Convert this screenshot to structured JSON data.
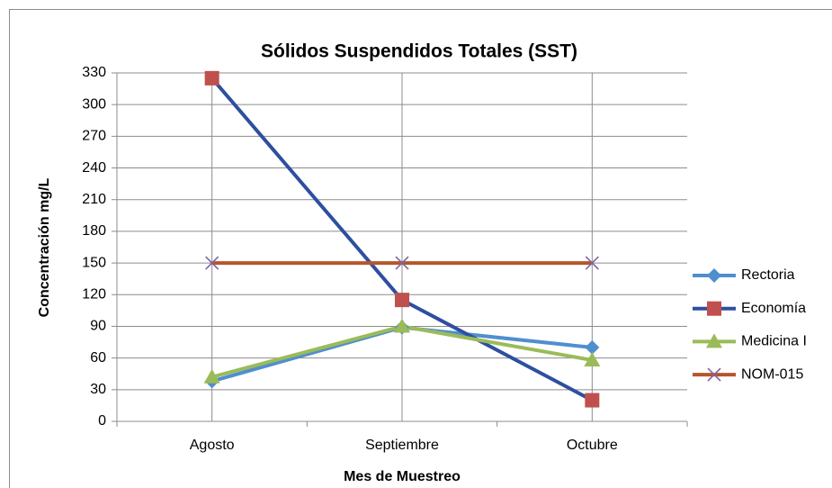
{
  "chart_data": {
    "type": "line",
    "title": "Sólidos Suspendidos Totales (SST)",
    "x_label": "Mes de Muestreo",
    "y_label": "Concentración mg/L",
    "categories": [
      "Agosto",
      "Septiembre",
      "Octubre"
    ],
    "series": [
      {
        "name": "Rectoria",
        "color": "#4f8fcf",
        "marker_color": "#4f8fcf",
        "marker": "diamond",
        "values": [
          38,
          89,
          70
        ]
      },
      {
        "name": "Economía",
        "color": "#2e4fa0",
        "marker_color": "#c0504d",
        "marker": "square",
        "values": [
          325,
          115,
          20
        ]
      },
      {
        "name": "Medicina I",
        "color": "#9bbb59",
        "marker_color": "#9bbb59",
        "marker": "triangle",
        "values": [
          42,
          90,
          58
        ]
      },
      {
        "name": "NOM-015",
        "color": "#b5562a",
        "marker_color": "#8064a2",
        "marker": "x",
        "values": [
          150,
          150,
          150
        ]
      }
    ],
    "ylim": [
      0,
      330
    ],
    "yticks": [
      0,
      30,
      60,
      90,
      120,
      150,
      180,
      210,
      240,
      270,
      300,
      330
    ],
    "grid": true,
    "legend": "right"
  }
}
